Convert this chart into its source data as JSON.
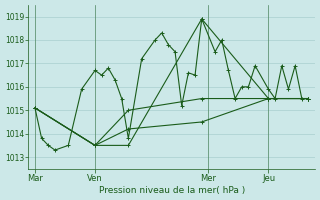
{
  "background_color": "#cce8e8",
  "grid_color": "#a0c8c8",
  "line_color": "#1a5c1a",
  "title": "Pression niveau de la mer( hPa )",
  "ylim": [
    1012.5,
    1019.5
  ],
  "yticks": [
    1013,
    1014,
    1015,
    1016,
    1017,
    1018,
    1019
  ],
  "day_labels": [
    "Mar",
    "Ven",
    "Mer",
    "Jeu"
  ],
  "day_ticks": [
    0,
    9,
    26,
    35
  ],
  "xlim": [
    -1,
    42
  ],
  "series1_x": [
    0,
    1,
    2,
    3,
    5,
    7,
    9,
    10,
    11,
    12,
    13,
    14,
    16,
    18,
    19,
    20,
    21,
    22,
    23,
    24,
    25,
    27,
    28,
    29,
    30,
    31,
    32,
    33,
    35,
    36,
    37,
    38,
    39,
    40,
    41
  ],
  "series1_y": [
    1015.1,
    1013.8,
    1013.5,
    1013.3,
    1013.5,
    1015.9,
    1016.7,
    1016.5,
    1016.8,
    1016.3,
    1015.5,
    1013.8,
    1017.2,
    1018.0,
    1018.3,
    1017.8,
    1017.5,
    1015.2,
    1016.6,
    1016.5,
    1018.9,
    1017.5,
    1018.0,
    1016.7,
    1015.5,
    1016.0,
    1016.0,
    1016.9,
    1015.9,
    1015.5,
    1016.9,
    1015.9,
    1016.9,
    1015.5,
    1015.5
  ],
  "series2_x": [
    0,
    9,
    14,
    25,
    35,
    41
  ],
  "series2_y": [
    1015.1,
    1013.5,
    1013.5,
    1018.9,
    1015.5,
    1015.5
  ],
  "series3_x": [
    0,
    9,
    14,
    25,
    35,
    41
  ],
  "series3_y": [
    1015.1,
    1013.5,
    1015.0,
    1015.5,
    1015.5,
    1015.5
  ],
  "series4_x": [
    0,
    9,
    14,
    25,
    35,
    41
  ],
  "series4_y": [
    1015.1,
    1013.5,
    1014.2,
    1014.5,
    1015.5,
    1015.5
  ]
}
